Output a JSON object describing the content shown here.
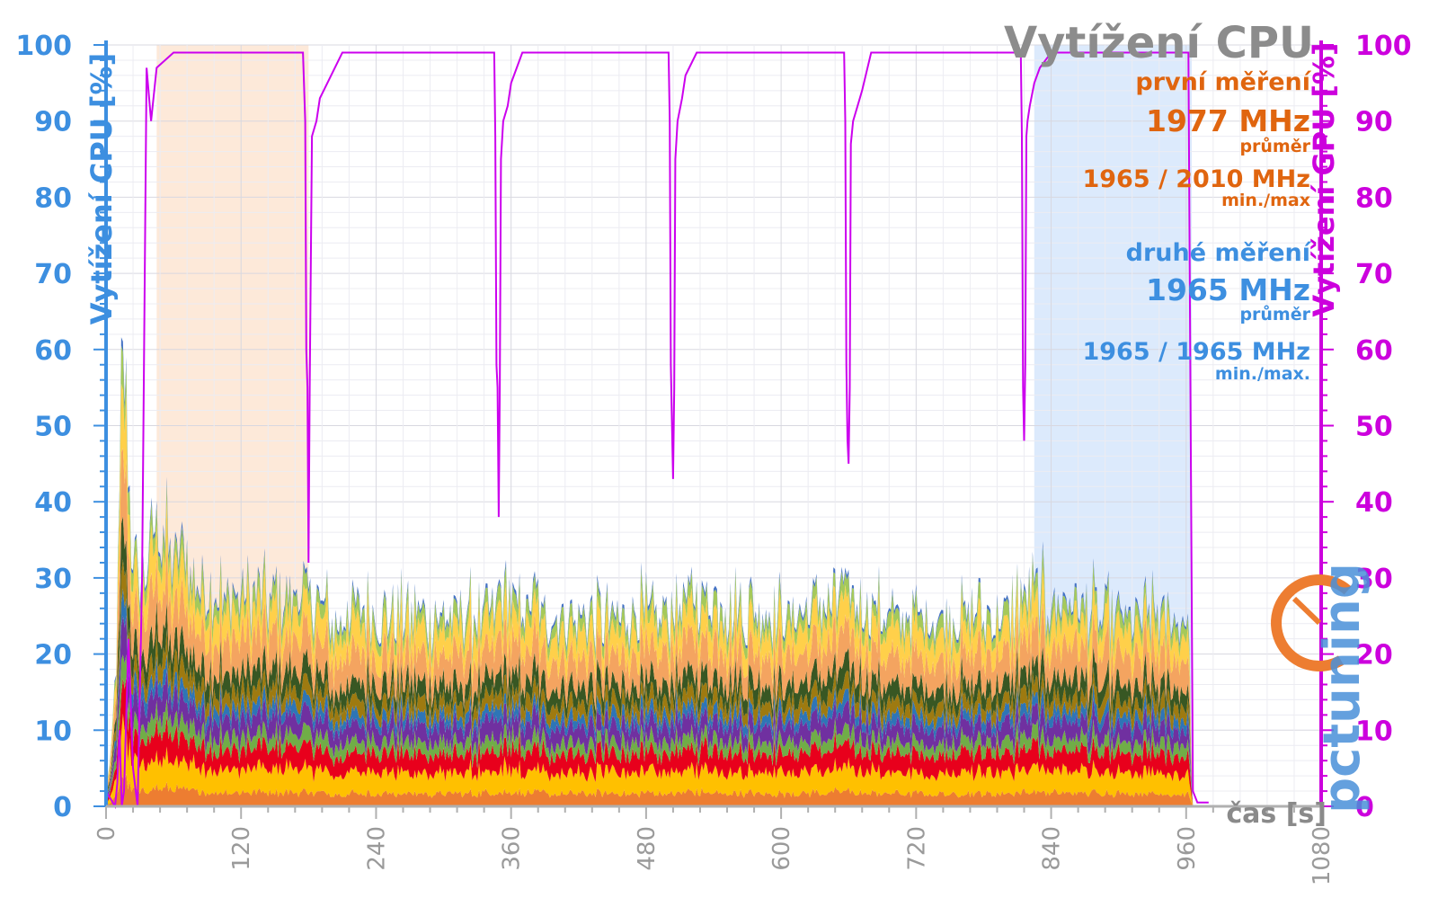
{
  "chart_data": {
    "type": "area",
    "title": "Vytížení CPU",
    "xlabel": "čas [s]",
    "ylabel_left": "Vytížení CPU [%]",
    "ylabel_right": "Vytížení GPU [%]",
    "xlim": [
      0,
      1080
    ],
    "ylim_left": [
      0,
      100
    ],
    "ylim_right": [
      0,
      100
    ],
    "x_ticks": [
      "0",
      "120",
      "240",
      "360",
      "480",
      "600",
      "720",
      "840",
      "960",
      "1080"
    ],
    "y_ticks_left": [
      "0",
      "10",
      "20",
      "30",
      "40",
      "50",
      "60",
      "70",
      "80",
      "90",
      "100"
    ],
    "y_ticks_right": [
      "0",
      "10",
      "20",
      "30",
      "40",
      "50",
      "60",
      "70",
      "80",
      "90",
      "100"
    ],
    "grid": true,
    "highlight_regions": [
      {
        "x": [
          45,
          180
        ],
        "color": "#fde9d9",
        "label": "první měření"
      },
      {
        "x": [
          825,
          965
        ],
        "color": "#dceafc",
        "label": "druhé měření"
      }
    ],
    "annotations": {
      "first": {
        "heading": "první měření",
        "avg": "1977 MHz",
        "avg_label": "průměr",
        "minmax": "1965 / 2010 MHz",
        "minmax_label": "min./max"
      },
      "second": {
        "heading": "druhé měření",
        "avg": "1965 MHz",
        "avg_label": "průměr",
        "minmax": "1965 / 1965 MHz",
        "minmax_label": "min./max."
      }
    },
    "cpu_stack_layers": [
      {
        "color": "#ed7d31",
        "base": 1.5
      },
      {
        "color": "#ffc000",
        "base": 2.5
      },
      {
        "color": "#e8001c",
        "base": 2.2
      },
      {
        "color": "#70ad47",
        "base": 1.4
      },
      {
        "color": "#7030a0",
        "base": 2.0
      },
      {
        "color": "#2e75b6",
        "base": 1.2
      },
      {
        "color": "#9e7a10",
        "base": 1.6
      },
      {
        "color": "#385723",
        "base": 2.0
      },
      {
        "color": "#f4a460",
        "base": 3.5
      },
      {
        "color": "#ffd04a",
        "base": 3.0
      },
      {
        "color": "#a5c95a",
        "base": 1.5
      },
      {
        "color": "#4472c4",
        "base": 0.4
      }
    ],
    "cpu_total_profile": {
      "x": [
        0,
        5,
        10,
        14,
        18,
        22,
        26,
        30,
        45,
        60,
        80,
        100,
        120,
        150,
        180,
        200,
        230,
        260,
        300,
        340,
        350,
        400,
        500,
        520,
        600,
        660,
        700,
        800,
        815,
        900,
        962,
        966,
        1080
      ],
      "y": [
        3,
        8,
        25,
        65,
        55,
        40,
        32,
        30,
        40,
        36,
        33,
        30,
        30,
        30,
        30,
        27,
        28,
        27,
        27,
        27,
        30,
        27,
        27,
        30,
        27,
        30,
        27,
        27,
        30,
        27,
        26,
        0,
        0
      ]
    },
    "gpu_series": {
      "name": "GPU",
      "color": "#cc00ee",
      "x": [
        0,
        8,
        10,
        12,
        14,
        16,
        20,
        24,
        28,
        32,
        36,
        40,
        45,
        60,
        100,
        150,
        175,
        177,
        178,
        179,
        180,
        181,
        183,
        187,
        190,
        200,
        210,
        230,
        300,
        345,
        346,
        347,
        348,
        349,
        350,
        351,
        353,
        357,
        360,
        370,
        380,
        400,
        480,
        500,
        501,
        502,
        503,
        504,
        505,
        506,
        508,
        512,
        515,
        525,
        535,
        560,
        640,
        656,
        657,
        658,
        659,
        660,
        661,
        662,
        664,
        668,
        672,
        680,
        690,
        720,
        800,
        813,
        814,
        815,
        816,
        817,
        818,
        819,
        821,
        825,
        830,
        840,
        860,
        900,
        962,
        964,
        966,
        970,
        980
      ],
      "y": [
        2,
        0,
        3,
        10,
        0,
        2,
        22,
        5,
        0,
        30,
        97,
        90,
        97,
        99,
        99,
        99,
        99,
        90,
        60,
        55,
        32,
        55,
        88,
        90,
        93,
        96,
        99,
        99,
        99,
        99,
        88,
        58,
        55,
        38,
        55,
        85,
        90,
        92,
        95,
        99,
        99,
        99,
        99,
        99,
        90,
        58,
        50,
        43,
        55,
        85,
        90,
        93,
        96,
        99,
        99,
        99,
        99,
        99,
        90,
        58,
        48,
        45,
        55,
        87,
        90,
        92,
        94,
        99,
        99,
        99,
        99,
        99,
        88,
        55,
        48,
        58,
        88,
        90,
        92,
        95,
        97,
        99,
        99,
        99,
        99,
        50,
        2,
        0.5,
        0.5
      ]
    }
  },
  "logo": {
    "text": "pctuning"
  }
}
